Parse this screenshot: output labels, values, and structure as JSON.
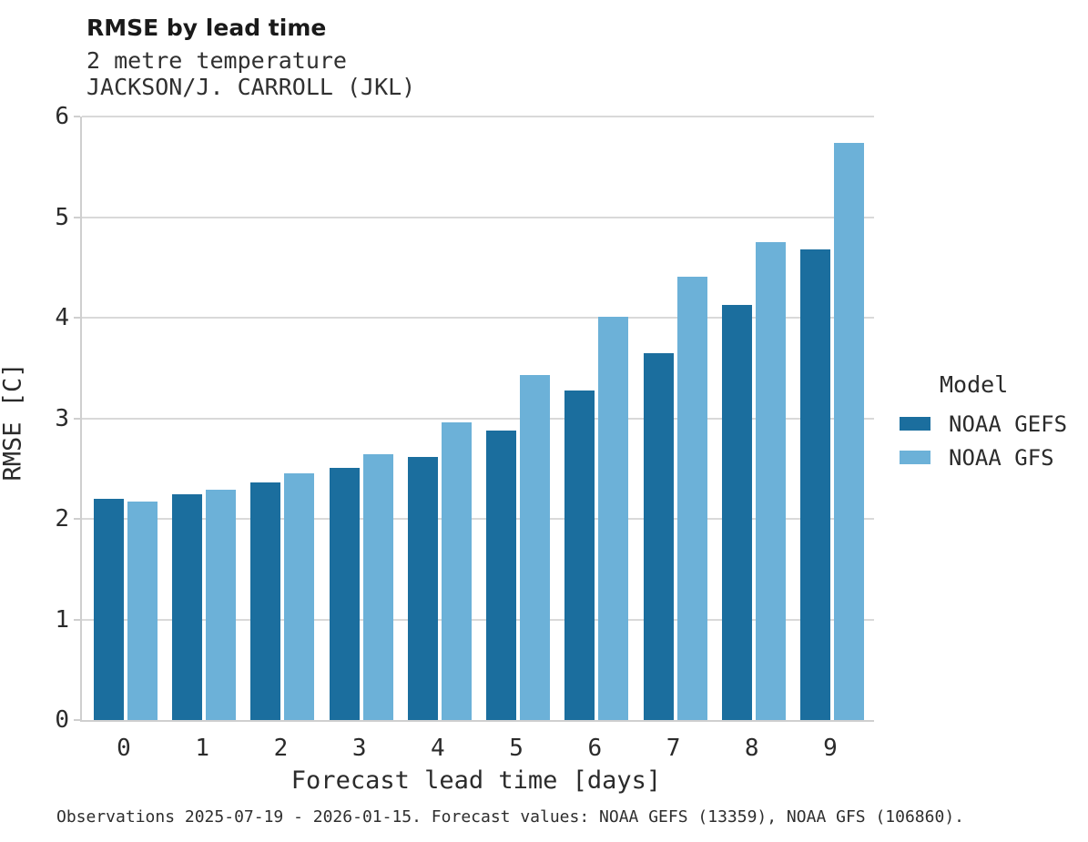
{
  "chart_data": {
    "type": "bar",
    "title": "RMSE by lead time",
    "subtitle": "2 metre temperature",
    "station": "JACKSON/J. CARROLL (JKL)",
    "xlabel": "Forecast lead time [days]",
    "ylabel": "RMSE [C]",
    "categories": [
      "0",
      "1",
      "2",
      "3",
      "4",
      "5",
      "6",
      "7",
      "8",
      "9"
    ],
    "ylim": [
      0,
      6
    ],
    "yticks": [
      0,
      1,
      2,
      3,
      4,
      5,
      6
    ],
    "grid": "horizontal",
    "legend_position": "right",
    "series": [
      {
        "name": "NOAA GEFS",
        "color": "#1b6e9e",
        "values": [
          2.2,
          2.24,
          2.36,
          2.51,
          2.62,
          2.88,
          3.28,
          3.65,
          4.13,
          4.68
        ]
      },
      {
        "name": "NOAA GFS",
        "color": "#6cb1d8",
        "values": [
          2.17,
          2.29,
          2.45,
          2.64,
          2.96,
          3.43,
          4.01,
          4.41,
          4.75,
          5.74
        ]
      }
    ]
  },
  "legend": {
    "title": "Model"
  },
  "caption": "Observations 2025-07-19 - 2026-01-15. Forecast values: NOAA GEFS (13359), NOAA GFS (106860)."
}
